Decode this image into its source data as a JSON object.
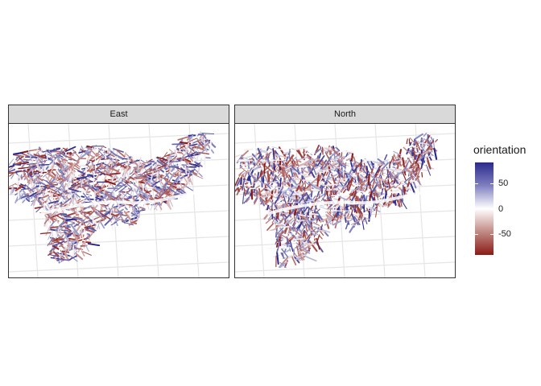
{
  "facets": [
    {
      "label": "East"
    },
    {
      "label": "North"
    }
  ],
  "legend": {
    "title": "orientation",
    "ticks": [
      {
        "value": 50,
        "label": "50"
      },
      {
        "value": 0,
        "label": "0"
      },
      {
        "value": -50,
        "label": "-50"
      }
    ],
    "range": [
      -90,
      90
    ],
    "colors": {
      "high": "#2b2a8c",
      "mid": "#ffffff",
      "low": "#8b1a16"
    }
  },
  "colors": {
    "strip_bg": "#d9d9d9",
    "frame": "#333333",
    "graticule": "#e5e5e5"
  }
}
